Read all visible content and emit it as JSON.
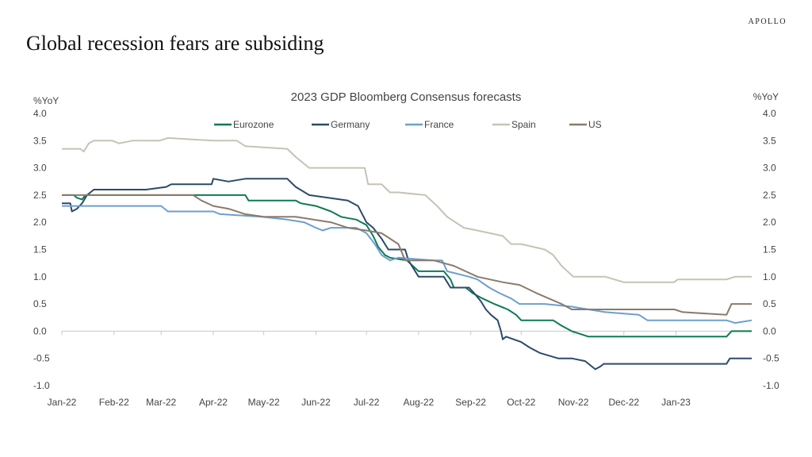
{
  "header": {
    "brand": "APOLLO",
    "headline": "Global recession fears are subsiding"
  },
  "chart_data": {
    "type": "line",
    "title": "2023 GDP Bloomberg Consensus forecasts",
    "ylabel_left": "%YoY",
    "ylabel_right": "%YoY",
    "ylim": [
      -1.0,
      4.0
    ],
    "yticks": [
      "4.0",
      "3.5",
      "3.0",
      "2.5",
      "2.0",
      "1.5",
      "1.0",
      "0.5",
      "0.0",
      "-0.5",
      "-1.0"
    ],
    "ytick_values": [
      4.0,
      3.5,
      3.0,
      2.5,
      2.0,
      1.5,
      1.0,
      0.5,
      0.0,
      -0.5,
      -1.0
    ],
    "xlim": [
      "2022-01-01",
      "2023-02-15"
    ],
    "xticks": [
      "Jan-22",
      "Feb-22",
      "Mar-22",
      "Apr-22",
      "May-22",
      "Jun-22",
      "Jul-22",
      "Aug-22",
      "Sep-22",
      "Oct-22",
      "Nov-22",
      "Dec-22",
      "Jan-23"
    ],
    "xtick_dates": [
      "2022-01-01",
      "2022-02-01",
      "2022-03-01",
      "2022-04-01",
      "2022-05-01",
      "2022-06-01",
      "2022-07-01",
      "2022-08-01",
      "2022-09-01",
      "2022-10-01",
      "2022-11-01",
      "2022-12-01",
      "2023-01-01"
    ],
    "legend_position": "top",
    "series": [
      {
        "name": "Eurozone",
        "color": "#0e7a55",
        "points": [
          [
            "2022-01-01",
            2.5
          ],
          [
            "2022-01-08",
            2.5
          ],
          [
            "2022-01-10",
            2.45
          ],
          [
            "2022-01-13",
            2.42
          ],
          [
            "2022-01-15",
            2.5
          ],
          [
            "2022-02-15",
            2.5
          ],
          [
            "2022-03-20",
            2.5
          ],
          [
            "2022-04-20",
            2.5
          ],
          [
            "2022-04-22",
            2.4
          ],
          [
            "2022-05-20",
            2.4
          ],
          [
            "2022-05-23",
            2.35
          ],
          [
            "2022-06-01",
            2.3
          ],
          [
            "2022-06-10",
            2.2
          ],
          [
            "2022-06-16",
            2.1
          ],
          [
            "2022-06-25",
            2.05
          ],
          [
            "2022-07-01",
            1.95
          ],
          [
            "2022-07-05",
            1.75
          ],
          [
            "2022-07-08",
            1.55
          ],
          [
            "2022-07-12",
            1.4
          ],
          [
            "2022-07-15",
            1.35
          ],
          [
            "2022-07-25",
            1.3
          ],
          [
            "2022-08-01",
            1.1
          ],
          [
            "2022-08-16",
            1.1
          ],
          [
            "2022-08-20",
            0.95
          ],
          [
            "2022-08-22",
            0.8
          ],
          [
            "2022-08-29",
            0.8
          ],
          [
            "2022-09-02",
            0.7
          ],
          [
            "2022-09-08",
            0.6
          ],
          [
            "2022-09-15",
            0.5
          ],
          [
            "2022-09-23",
            0.4
          ],
          [
            "2022-09-28",
            0.3
          ],
          [
            "2022-10-01",
            0.2
          ],
          [
            "2022-10-20",
            0.2
          ],
          [
            "2022-10-25",
            0.1
          ],
          [
            "2022-10-31",
            0.0
          ],
          [
            "2022-11-10",
            -0.1
          ],
          [
            "2022-12-31",
            -0.1
          ],
          [
            "2023-01-31",
            -0.1
          ],
          [
            "2023-02-03",
            0.0
          ],
          [
            "2023-02-15",
            0.0
          ]
        ]
      },
      {
        "name": "Germany",
        "color": "#2b4a6b",
        "points": [
          [
            "2022-01-01",
            2.35
          ],
          [
            "2022-01-06",
            2.35
          ],
          [
            "2022-01-07",
            2.2
          ],
          [
            "2022-01-10",
            2.25
          ],
          [
            "2022-01-13",
            2.35
          ],
          [
            "2022-01-16",
            2.5
          ],
          [
            "2022-01-20",
            2.6
          ],
          [
            "2022-02-20",
            2.6
          ],
          [
            "2022-03-04",
            2.65
          ],
          [
            "2022-03-07",
            2.7
          ],
          [
            "2022-03-31",
            2.7
          ],
          [
            "2022-04-01",
            2.8
          ],
          [
            "2022-04-10",
            2.75
          ],
          [
            "2022-04-20",
            2.8
          ],
          [
            "2022-05-15",
            2.8
          ],
          [
            "2022-05-20",
            2.65
          ],
          [
            "2022-05-28",
            2.5
          ],
          [
            "2022-06-20",
            2.4
          ],
          [
            "2022-06-26",
            2.3
          ],
          [
            "2022-07-01",
            2.0
          ],
          [
            "2022-07-05",
            1.9
          ],
          [
            "2022-07-10",
            1.7
          ],
          [
            "2022-07-14",
            1.5
          ],
          [
            "2022-07-24",
            1.5
          ],
          [
            "2022-07-26",
            1.3
          ],
          [
            "2022-08-01",
            1.0
          ],
          [
            "2022-08-16",
            1.0
          ],
          [
            "2022-08-20",
            0.8
          ],
          [
            "2022-08-31",
            0.8
          ],
          [
            "2022-09-03",
            0.7
          ],
          [
            "2022-09-07",
            0.55
          ],
          [
            "2022-09-10",
            0.4
          ],
          [
            "2022-09-13",
            0.3
          ],
          [
            "2022-09-17",
            0.2
          ],
          [
            "2022-09-19",
            0.0
          ],
          [
            "2022-09-20",
            -0.15
          ],
          [
            "2022-09-22",
            -0.1
          ],
          [
            "2022-10-01",
            -0.2
          ],
          [
            "2022-10-06",
            -0.3
          ],
          [
            "2022-10-12",
            -0.4
          ],
          [
            "2022-10-23",
            -0.5
          ],
          [
            "2022-10-31",
            -0.5
          ],
          [
            "2022-11-08",
            -0.55
          ],
          [
            "2022-11-14",
            -0.7
          ],
          [
            "2022-11-17",
            -0.65
          ],
          [
            "2022-11-19",
            -0.6
          ],
          [
            "2022-11-30",
            -0.6
          ],
          [
            "2023-01-15",
            -0.6
          ],
          [
            "2023-01-31",
            -0.6
          ],
          [
            "2023-02-02",
            -0.5
          ],
          [
            "2023-02-15",
            -0.5
          ]
        ]
      },
      {
        "name": "France",
        "color": "#6d9fcf",
        "points": [
          [
            "2022-01-01",
            2.3
          ],
          [
            "2022-01-15",
            2.3
          ],
          [
            "2022-03-01",
            2.3
          ],
          [
            "2022-03-05",
            2.2
          ],
          [
            "2022-04-01",
            2.2
          ],
          [
            "2022-04-05",
            2.15
          ],
          [
            "2022-04-30",
            2.1
          ],
          [
            "2022-05-15",
            2.05
          ],
          [
            "2022-05-25",
            2.0
          ],
          [
            "2022-06-01",
            1.9
          ],
          [
            "2022-06-05",
            1.85
          ],
          [
            "2022-06-10",
            1.9
          ],
          [
            "2022-06-25",
            1.9
          ],
          [
            "2022-07-01",
            1.8
          ],
          [
            "2022-07-06",
            1.6
          ],
          [
            "2022-07-10",
            1.4
          ],
          [
            "2022-07-15",
            1.3
          ],
          [
            "2022-07-20",
            1.35
          ],
          [
            "2022-08-10",
            1.3
          ],
          [
            "2022-08-15",
            1.3
          ],
          [
            "2022-08-18",
            1.1
          ],
          [
            "2022-08-31",
            1.0
          ],
          [
            "2022-09-05",
            0.95
          ],
          [
            "2022-09-12",
            0.8
          ],
          [
            "2022-09-18",
            0.7
          ],
          [
            "2022-09-25",
            0.6
          ],
          [
            "2022-09-30",
            0.5
          ],
          [
            "2022-10-10",
            0.5
          ],
          [
            "2022-10-15",
            0.5
          ],
          [
            "2022-10-31",
            0.45
          ],
          [
            "2022-11-10",
            0.4
          ],
          [
            "2022-11-20",
            0.35
          ],
          [
            "2022-12-10",
            0.3
          ],
          [
            "2022-12-15",
            0.2
          ],
          [
            "2023-01-31",
            0.2
          ],
          [
            "2023-02-05",
            0.15
          ],
          [
            "2023-02-15",
            0.2
          ]
        ]
      },
      {
        "name": "Spain",
        "color": "#c8c2b4",
        "points": [
          [
            "2022-01-01",
            3.35
          ],
          [
            "2022-01-12",
            3.35
          ],
          [
            "2022-01-14",
            3.3
          ],
          [
            "2022-01-17",
            3.45
          ],
          [
            "2022-01-20",
            3.5
          ],
          [
            "2022-01-31",
            3.5
          ],
          [
            "2022-02-04",
            3.45
          ],
          [
            "2022-02-12",
            3.5
          ],
          [
            "2022-02-28",
            3.5
          ],
          [
            "2022-03-05",
            3.55
          ],
          [
            "2022-04-01",
            3.5
          ],
          [
            "2022-04-15",
            3.5
          ],
          [
            "2022-04-20",
            3.4
          ],
          [
            "2022-05-15",
            3.35
          ],
          [
            "2022-05-20",
            3.2
          ],
          [
            "2022-05-28",
            3.0
          ],
          [
            "2022-06-30",
            3.0
          ],
          [
            "2022-07-02",
            2.7
          ],
          [
            "2022-07-10",
            2.7
          ],
          [
            "2022-07-15",
            2.55
          ],
          [
            "2022-07-20",
            2.55
          ],
          [
            "2022-08-05",
            2.5
          ],
          [
            "2022-08-12",
            2.3
          ],
          [
            "2022-08-18",
            2.1
          ],
          [
            "2022-08-28",
            1.9
          ],
          [
            "2022-09-05",
            1.85
          ],
          [
            "2022-09-20",
            1.75
          ],
          [
            "2022-09-25",
            1.6
          ],
          [
            "2022-10-01",
            1.6
          ],
          [
            "2022-10-15",
            1.5
          ],
          [
            "2022-10-20",
            1.4
          ],
          [
            "2022-10-25",
            1.2
          ],
          [
            "2022-11-01",
            1.0
          ],
          [
            "2022-11-20",
            1.0
          ],
          [
            "2022-12-01",
            0.9
          ],
          [
            "2022-12-31",
            0.9
          ],
          [
            "2023-01-02",
            0.95
          ],
          [
            "2023-01-31",
            0.95
          ],
          [
            "2023-02-05",
            1.0
          ],
          [
            "2023-02-15",
            1.0
          ]
        ]
      },
      {
        "name": "US",
        "color": "#8b7b6b",
        "points": [
          [
            "2022-01-01",
            2.5
          ],
          [
            "2022-02-28",
            2.5
          ],
          [
            "2022-03-20",
            2.5
          ],
          [
            "2022-03-25",
            2.4
          ],
          [
            "2022-04-01",
            2.3
          ],
          [
            "2022-04-10",
            2.25
          ],
          [
            "2022-04-20",
            2.15
          ],
          [
            "2022-05-01",
            2.1
          ],
          [
            "2022-05-20",
            2.1
          ],
          [
            "2022-06-10",
            2.0
          ],
          [
            "2022-06-20",
            1.9
          ],
          [
            "2022-07-01",
            1.85
          ],
          [
            "2022-07-10",
            1.8
          ],
          [
            "2022-07-20",
            1.6
          ],
          [
            "2022-07-24",
            1.3
          ],
          [
            "2022-08-10",
            1.3
          ],
          [
            "2022-08-22",
            1.2
          ],
          [
            "2022-09-05",
            1.0
          ],
          [
            "2022-09-20",
            0.9
          ],
          [
            "2022-09-30",
            0.85
          ],
          [
            "2022-10-10",
            0.7
          ],
          [
            "2022-10-25",
            0.5
          ],
          [
            "2022-10-31",
            0.4
          ],
          [
            "2022-12-31",
            0.4
          ],
          [
            "2023-01-05",
            0.35
          ],
          [
            "2023-01-31",
            0.3
          ],
          [
            "2023-02-03",
            0.5
          ],
          [
            "2023-02-15",
            0.5
          ]
        ]
      }
    ]
  }
}
